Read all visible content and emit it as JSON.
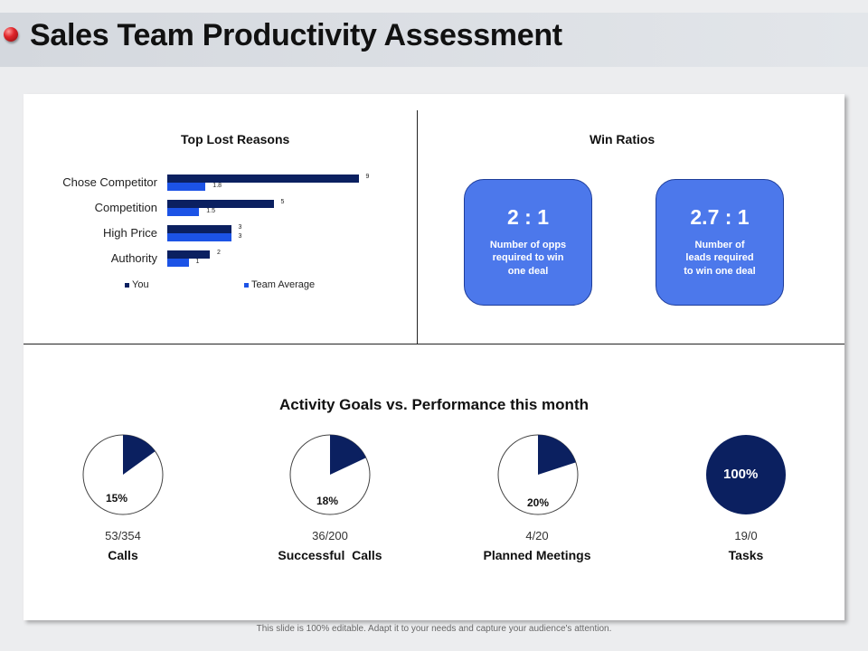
{
  "slide": {
    "title": "Sales Team Productivity Assessment",
    "footer": "This slide is 100% editable. Adapt it to your needs and capture your audience's attention."
  },
  "colors": {
    "you": "#0b2060",
    "team_average": "#1c53e6",
    "card": "#4c78eb",
    "pie_fill": "#0b2060"
  },
  "lost_reasons": {
    "title": "Top Lost Reasons",
    "legend": {
      "you": "You",
      "team": "Team Average"
    }
  },
  "chart_data": {
    "type": "bar",
    "orientation": "horizontal",
    "title": "Top Lost Reasons",
    "categories": [
      "Chose Competitor",
      "Competition",
      "High Price",
      "Authority"
    ],
    "series": [
      {
        "name": "You",
        "values": [
          9,
          5,
          3,
          2
        ],
        "labels": [
          "9",
          "5",
          "3",
          "2"
        ]
      },
      {
        "name": "Team Average",
        "values": [
          1.8,
          1.5,
          3,
          1
        ],
        "labels": [
          "1.8",
          "1.5",
          "3",
          "1"
        ]
      }
    ],
    "xlim": [
      0,
      10
    ],
    "legend": "bottom"
  },
  "win_ratios": {
    "title": "Win Ratios",
    "cards": [
      {
        "value": "2 : 1",
        "desc_lines": [
          "Number of opps",
          "required to win",
          "one deal"
        ]
      },
      {
        "value": "2.7 : 1",
        "desc_lines": [
          "Number of",
          "leads required",
          "to win one deal"
        ]
      }
    ]
  },
  "activity": {
    "title": "Activity Goals vs. Performance this month",
    "items": [
      {
        "label": "Calls",
        "ratio": "53/354",
        "percent_label": "15%",
        "fraction": 0.15
      },
      {
        "label": "Successful  Calls",
        "ratio": "36/200",
        "percent_label": "18%",
        "fraction": 0.18
      },
      {
        "label": "Planned Meetings",
        "ratio": "4/20",
        "percent_label": "20%",
        "fraction": 0.2
      },
      {
        "label": "Tasks",
        "ratio": "19/0",
        "percent_label": "100%",
        "fraction": 1.0
      }
    ]
  }
}
